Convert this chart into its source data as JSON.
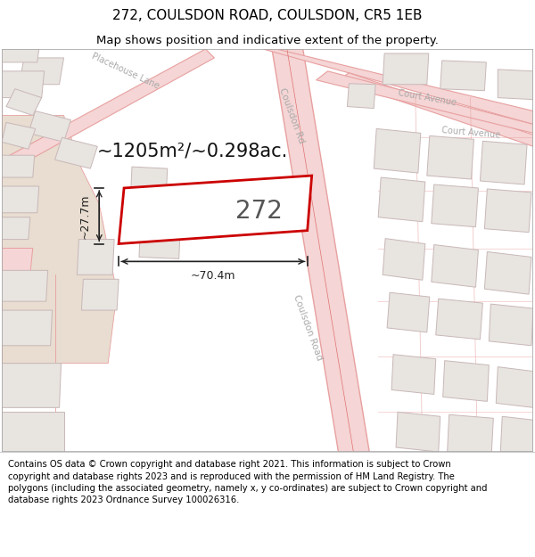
{
  "title_line1": "272, COULSDON ROAD, COULSDON, CR5 1EB",
  "title_line2": "Map shows position and indicative extent of the property.",
  "footer_text": "Contains OS data © Crown copyright and database right 2021. This information is subject to Crown copyright and database rights 2023 and is reproduced with the permission of HM Land Registry. The polygons (including the associated geometry, namely x, y co-ordinates) are subject to Crown copyright and database rights 2023 Ordnance Survey 100026316.",
  "map_bg": "#ffffff",
  "road_fill": "#f5d5d5",
  "road_line": "#e8a0a0",
  "road_center_line": "#e07070",
  "bld_fill": "#e8e4e0",
  "bld_line": "#c8b8b8",
  "tan_fill": "#e8ddd0",
  "prop_line": "#cc0000",
  "dim_color": "#222222",
  "label_color": "#888888",
  "area_color": "#111111",
  "title_fontsize": 11,
  "subtitle_fontsize": 9.5,
  "footer_fontsize": 7.2,
  "figsize": [
    6.0,
    6.25
  ],
  "dpi": 100
}
